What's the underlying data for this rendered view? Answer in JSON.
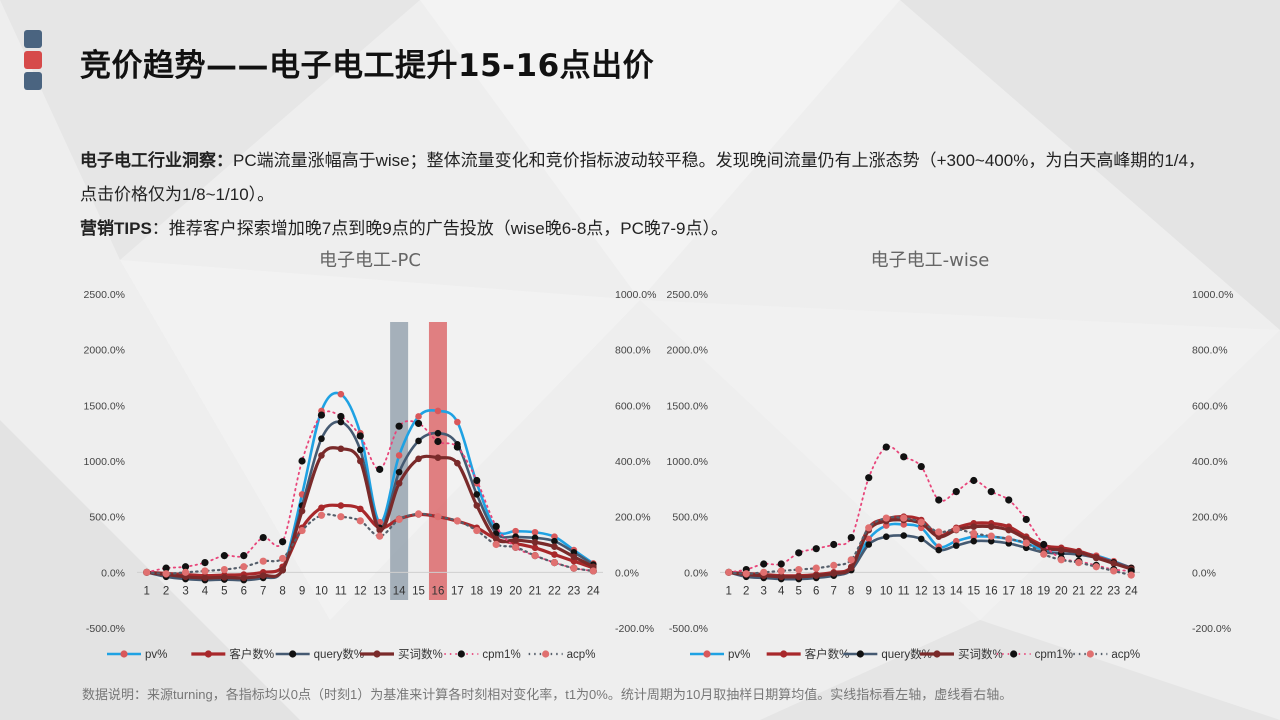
{
  "page": {
    "title": "竞价趋势——电子电工提升15-16点出价",
    "insight_label": "电子电工行业洞察：",
    "insight_text": "PC端流量涨幅高于wise；整体流量变化和竞价指标波动较平稳。发现晚间流量仍有上涨态势（+300~400%，为白天高峰期的1/4，点击价格仅为1/8~1/10）。",
    "tips_label": "营销TIPS",
    "tips_text": "：推荐客户探索增加晚7点到晚9点的广告投放（wise晚6-8点，PC晚7-9点）。",
    "footnote": "数据说明：来源turning，各指标均以0点（时刻1）为基准来计算各时刻相对变化率，t1为0%。统计周期为10月取抽样日期算均值。实线指标看左轴，虚线看右轴。"
  },
  "colors": {
    "logo": [
      "#4a6480",
      "#d64a4a",
      "#4a6480"
    ],
    "pv": "#1fa2e3",
    "customers": "#a8282b",
    "query": "#455a72",
    "words": "#7a2a2a",
    "cpm1": "#e8457a",
    "acp": "#555e6a",
    "highlight_grey": "#8b9aa7",
    "highlight_red": "#d9585b"
  },
  "chart_data": [
    {
      "type": "line",
      "title": "电子电工-PC",
      "x": [
        1,
        2,
        3,
        4,
        5,
        6,
        7,
        8,
        9,
        10,
        11,
        12,
        13,
        14,
        15,
        16,
        17,
        18,
        19,
        20,
        21,
        22,
        23,
        24
      ],
      "y_left_ticks": [
        "2500.0%",
        "2000.0%",
        "1500.0%",
        "1000.0%",
        "500.0%",
        "0.0%",
        "-500.0%"
      ],
      "y_right_ticks": [
        "1000.0%",
        "800.0%",
        "600.0%",
        "400.0%",
        "200.0%",
        "0.0%",
        "-200.0%"
      ],
      "ylim_left": [
        -500,
        2500
      ],
      "ylim_right": [
        -200,
        1000
      ],
      "highlight_hours": [
        14,
        16
      ],
      "legend_position": "bottom",
      "series": [
        {
          "name": "pv%",
          "axis": "left",
          "style": "solid",
          "values": [
            0,
            -30,
            -50,
            -60,
            -55,
            -60,
            -40,
            30,
            700,
            1450,
            1600,
            1250,
            450,
            1050,
            1400,
            1450,
            1350,
            800,
            380,
            370,
            360,
            320,
            200,
            80
          ]
        },
        {
          "name": "客户数%",
          "axis": "left",
          "style": "solid",
          "values": [
            0,
            -10,
            -20,
            -30,
            -25,
            -20,
            0,
            50,
            400,
            580,
            600,
            570,
            400,
            480,
            520,
            500,
            460,
            400,
            300,
            260,
            220,
            160,
            100,
            40
          ]
        },
        {
          "name": "query数%",
          "axis": "left",
          "style": "solid",
          "values": [
            0,
            -40,
            -60,
            -70,
            -65,
            -70,
            -50,
            20,
            600,
            1200,
            1350,
            1100,
            400,
            900,
            1180,
            1250,
            1150,
            700,
            350,
            320,
            310,
            280,
            180,
            70
          ]
        },
        {
          "name": "买词数%",
          "axis": "left",
          "style": "solid",
          "values": [
            0,
            -20,
            -40,
            -50,
            -45,
            -50,
            -30,
            20,
            550,
            1050,
            1110,
            1000,
            380,
            800,
            1020,
            1030,
            980,
            600,
            300,
            290,
            270,
            230,
            140,
            50
          ]
        },
        {
          "name": "cpm1%",
          "axis": "right",
          "style": "dotted",
          "values": [
            0,
            15,
            20,
            35,
            60,
            60,
            125,
            110,
            400,
            565,
            560,
            490,
            370,
            525,
            535,
            470,
            450,
            330,
            165,
            90,
            60,
            35,
            15,
            5
          ]
        },
        {
          "name": "acp%",
          "axis": "right",
          "style": "dotted",
          "values": [
            0,
            -5,
            0,
            5,
            10,
            20,
            40,
            50,
            150,
            205,
            200,
            185,
            130,
            190,
            210,
            200,
            185,
            150,
            100,
            90,
            60,
            35,
            15,
            5
          ]
        }
      ]
    },
    {
      "type": "line",
      "title": "电子电工-wise",
      "x": [
        1,
        2,
        3,
        4,
        5,
        6,
        7,
        8,
        9,
        10,
        11,
        12,
        13,
        14,
        15,
        16,
        17,
        18,
        19,
        20,
        21,
        22,
        23,
        24
      ],
      "y_left_ticks": [
        "2500.0%",
        "2000.0%",
        "1500.0%",
        "1000.0%",
        "500.0%",
        "0.0%",
        "-500.0%"
      ],
      "y_right_ticks": [
        "1000.0%",
        "800.0%",
        "600.0%",
        "400.0%",
        "200.0%",
        "0.0%",
        "-200.0%"
      ],
      "ylim_left": [
        -500,
        2500
      ],
      "ylim_right": [
        -200,
        1000
      ],
      "highlight_hours": [],
      "legend_position": "bottom",
      "series": [
        {
          "name": "pv%",
          "axis": "left",
          "style": "solid",
          "values": [
            0,
            -30,
            -40,
            -50,
            -50,
            -40,
            -20,
            30,
            300,
            420,
            430,
            400,
            230,
            280,
            320,
            320,
            300,
            260,
            200,
            200,
            180,
            150,
            100,
            40
          ]
        },
        {
          "name": "客户数%",
          "axis": "left",
          "style": "solid",
          "values": [
            0,
            -10,
            -20,
            -30,
            -30,
            -20,
            0,
            50,
            400,
            480,
            500,
            470,
            330,
            400,
            440,
            440,
            410,
            320,
            240,
            220,
            190,
            140,
            90,
            40
          ]
        },
        {
          "name": "query数%",
          "axis": "left",
          "style": "solid",
          "values": [
            0,
            -40,
            -50,
            -60,
            -60,
            -50,
            -30,
            20,
            250,
            320,
            330,
            300,
            200,
            240,
            280,
            280,
            260,
            220,
            180,
            170,
            160,
            130,
            90,
            40
          ]
        },
        {
          "name": "买词数%",
          "axis": "left",
          "style": "solid",
          "values": [
            0,
            -20,
            -30,
            -40,
            -40,
            -30,
            -10,
            40,
            380,
            460,
            470,
            440,
            320,
            380,
            410,
            410,
            380,
            300,
            220,
            200,
            180,
            130,
            80,
            30
          ]
        },
        {
          "name": "cpm1%",
          "axis": "right",
          "style": "dotted",
          "values": [
            0,
            10,
            30,
            30,
            70,
            85,
            100,
            125,
            340,
            450,
            415,
            380,
            260,
            290,
            330,
            290,
            260,
            190,
            100,
            50,
            40,
            25,
            10,
            5
          ]
        },
        {
          "name": "acp%",
          "axis": "right",
          "style": "dotted",
          "values": [
            0,
            -5,
            0,
            5,
            10,
            15,
            25,
            45,
            160,
            195,
            195,
            180,
            145,
            155,
            140,
            130,
            120,
            105,
            65,
            45,
            35,
            20,
            5,
            -10
          ]
        }
      ]
    }
  ]
}
